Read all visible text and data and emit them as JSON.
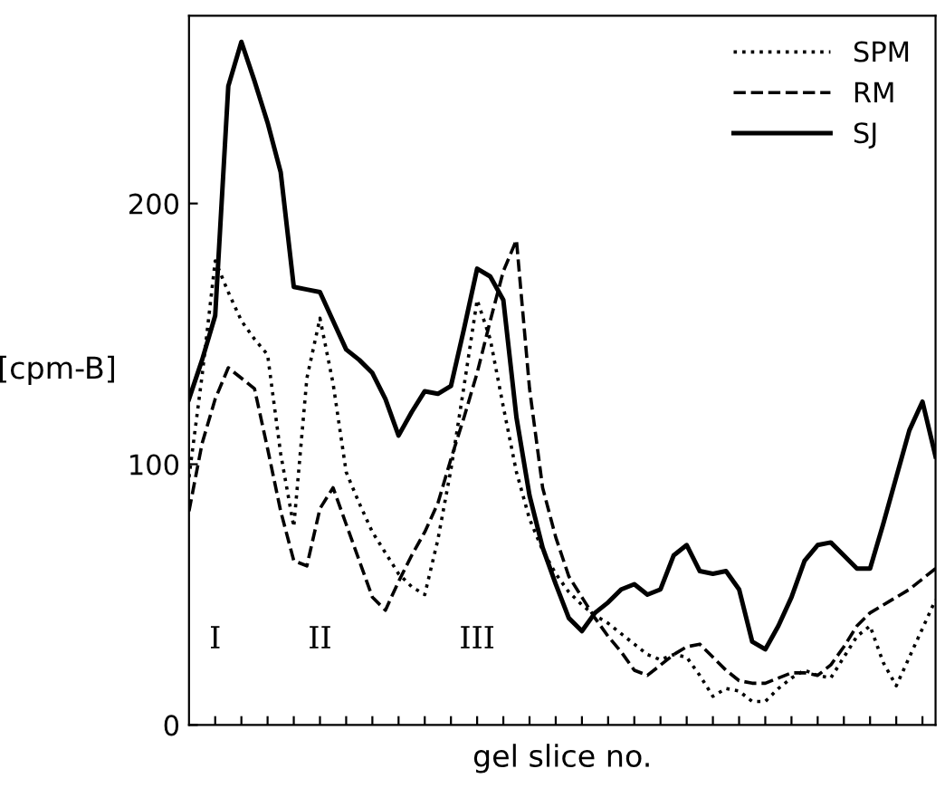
{
  "chart_data": {
    "type": "line",
    "xlabel": "gel slice no.",
    "ylabel": "[cpm-B]",
    "categories": [
      null,
      null,
      null,
      null,
      null,
      null,
      null,
      null,
      null,
      null,
      null,
      null,
      null,
      null,
      null,
      null,
      null,
      null,
      null,
      null,
      null,
      null,
      null,
      null,
      null,
      null,
      null,
      null,
      null,
      null,
      null,
      null,
      null,
      null,
      null,
      null,
      null,
      null,
      null,
      null,
      null,
      null,
      null,
      null,
      null,
      null,
      null,
      null,
      null,
      null,
      null,
      null,
      null,
      null,
      null,
      null,
      null,
      null
    ],
    "ylim": [
      0,
      272
    ],
    "yticks": [
      0,
      100,
      200
    ],
    "grid": false,
    "legend": "top right",
    "marker": "none",
    "annotations": [
      "I",
      "II",
      "III"
    ],
    "series": [
      {
        "name": "SPM",
        "color": "#000000",
        "line_style": "dotted",
        "values": [
          95,
          134,
          178,
          166,
          155,
          148,
          142,
          104,
          76,
          133,
          156,
          131,
          97,
          85,
          74,
          66,
          58,
          53,
          50,
          71,
          98,
          130,
          163,
          148,
          122,
          97,
          79,
          67,
          58,
          51,
          46,
          42,
          39,
          35,
          31,
          27,
          25,
          27,
          26,
          19,
          11,
          14,
          13,
          9,
          9,
          14,
          18,
          21,
          19,
          18,
          26,
          34,
          38,
          24,
          15,
          26,
          37,
          48
        ]
      },
      {
        "name": "RM",
        "color": "#000000",
        "line_style": "dashed",
        "values": [
          82,
          108,
          125,
          137,
          133,
          129,
          106,
          82,
          63,
          61,
          83,
          91,
          77,
          63,
          49,
          44,
          55,
          65,
          74,
          85,
          102,
          118,
          135,
          155,
          174,
          186,
          129,
          91,
          72,
          57,
          49,
          41,
          34,
          28,
          21,
          19,
          23,
          27,
          30,
          31,
          26,
          21,
          17,
          16,
          16,
          18,
          20,
          20,
          19,
          23,
          30,
          38,
          43,
          46,
          49,
          52,
          56,
          60
        ]
      },
      {
        "name": "SJ",
        "color": "#000000",
        "line_style": "solid",
        "values": [
          125,
          140,
          157,
          245,
          262,
          247,
          231,
          212,
          168,
          167,
          166,
          155,
          144,
          140,
          135,
          125,
          111,
          120,
          128,
          127,
          130,
          152,
          175,
          172,
          163,
          118,
          88,
          68,
          54,
          41,
          36,
          43,
          47,
          52,
          54,
          50,
          52,
          65,
          69,
          59,
          58,
          59,
          52,
          32,
          29,
          38,
          49,
          63,
          69,
          70,
          65,
          60,
          60,
          77,
          95,
          113,
          124,
          103
        ]
      }
    ]
  }
}
